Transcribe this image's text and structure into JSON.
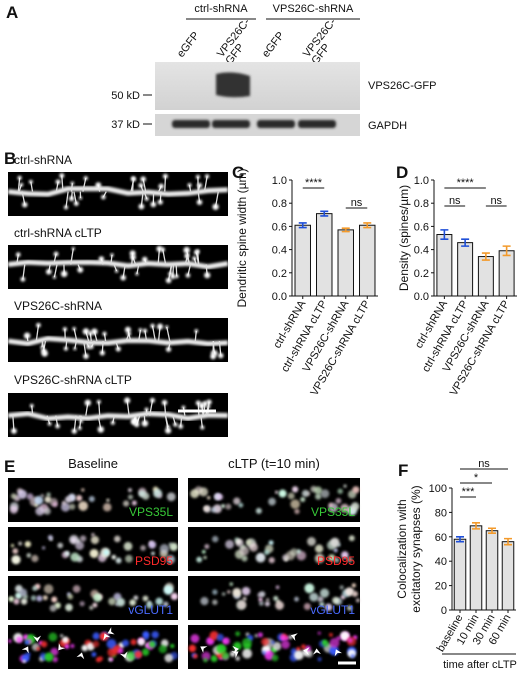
{
  "figure": {
    "panel_A": {
      "letter": "A",
      "groups": [
        "ctrl-shRNA",
        "VPS26C-shRNA"
      ],
      "lanes": [
        [
          "eGFP"
        ],
        [
          "VPS26C-",
          "GFP"
        ],
        [
          "eGFP"
        ],
        [
          "VPS26C-",
          "GFP"
        ]
      ],
      "markers": [
        "50 kD",
        "37 kD"
      ],
      "blots": [
        "VPS26C-GFP",
        "GAPDH"
      ]
    },
    "panel_B": {
      "letter": "B",
      "conditions": [
        "ctrl-shRNA",
        "ctrl-shRNA cLTP",
        "VPS26C-shRNA",
        "VPS26C-shRNA cLTP"
      ]
    },
    "panel_E": {
      "letter": "E",
      "columns": [
        "Baseline",
        "cLTP (t=10 min)"
      ],
      "channels": [
        "VPS35L",
        "PSD95",
        "vGLUT1"
      ]
    }
  },
  "chart_data": [
    {
      "type": "bar",
      "panel_label": "C",
      "ylabel": [
        "Dendritic spine width (µm)"
      ],
      "categories": [
        "ctrl-shRNA",
        "ctrl-shRNA cLTP",
        "VPS26C-shRNA",
        "VPS26C-shRNA cLTP"
      ],
      "values": [
        0.61,
        0.71,
        0.57,
        0.61
      ],
      "errors": [
        0.02,
        0.02,
        0.015,
        0.02
      ],
      "colors": [
        "#1f4fd8",
        "#1f4fd8",
        "#f39a2b",
        "#f39a2b"
      ],
      "ylim": [
        0,
        1.0
      ],
      "yticks": [
        {
          "value": 0,
          "label": "0.0"
        },
        0.2,
        0.4,
        0.6,
        0.8,
        {
          "value": 1,
          "label": "1.0"
        }
      ],
      "comparisons": [
        {
          "label": "****",
          "between": [
            "ctrl-shRNA",
            "ctrl-shRNA cLTP"
          ]
        },
        {
          "label": "ns",
          "between": [
            "VPS26C-shRNA",
            "VPS26C-shRNA cLTP"
          ]
        }
      ]
    },
    {
      "type": "bar",
      "panel_label": "D",
      "ylabel": [
        "Density (spines/µm)"
      ],
      "categories": [
        "ctrl-shRNA",
        "ctrl-shRNA cLTP",
        "VPS26C-shRNA",
        "VPS26C-shRNA cLTP"
      ],
      "values": [
        0.53,
        0.46,
        0.34,
        0.39
      ],
      "errors": [
        0.04,
        0.03,
        0.03,
        0.04
      ],
      "colors": [
        "#1f4fd8",
        "#1f4fd8",
        "#f39a2b",
        "#f39a2b"
      ],
      "ylim": [
        0,
        1.0
      ],
      "yticks": [
        {
          "value": 0,
          "label": "0.0"
        },
        0.2,
        0.4,
        0.6,
        0.8,
        {
          "value": 1,
          "label": "1.0"
        }
      ],
      "comparisons": [
        {
          "label": "****",
          "between": [
            "ctrl-shRNA",
            "VPS26C-shRNA"
          ]
        },
        {
          "label": "ns",
          "between": [
            "ctrl-shRNA",
            "ctrl-shRNA cLTP"
          ]
        },
        {
          "label": "ns",
          "between": [
            "VPS26C-shRNA",
            "VPS26C-shRNA cLTP"
          ]
        }
      ]
    },
    {
      "type": "bar",
      "panel_label": "F",
      "ylabel": [
        "Colocalization with",
        "excitatory synapses (%)"
      ],
      "xlabel": "time after cLTP",
      "categories": [
        "baseline",
        "10 min",
        "30 min",
        "60 min"
      ],
      "values": [
        58,
        69,
        65,
        56
      ],
      "errors": [
        2,
        2.5,
        2,
        2.5
      ],
      "colors": [
        "#1f4fd8",
        "#f39a2b",
        "#f39a2b",
        "#f39a2b"
      ],
      "ylim": [
        0,
        100
      ],
      "yticks": [
        0,
        20,
        40,
        60,
        80,
        100
      ],
      "comparisons": [
        {
          "label": "***",
          "between": [
            "baseline",
            "10 min"
          ]
        },
        {
          "label": "*",
          "between": [
            "baseline",
            "30 min"
          ]
        },
        {
          "label": "ns",
          "between": [
            "baseline",
            "60 min"
          ]
        }
      ]
    }
  ]
}
